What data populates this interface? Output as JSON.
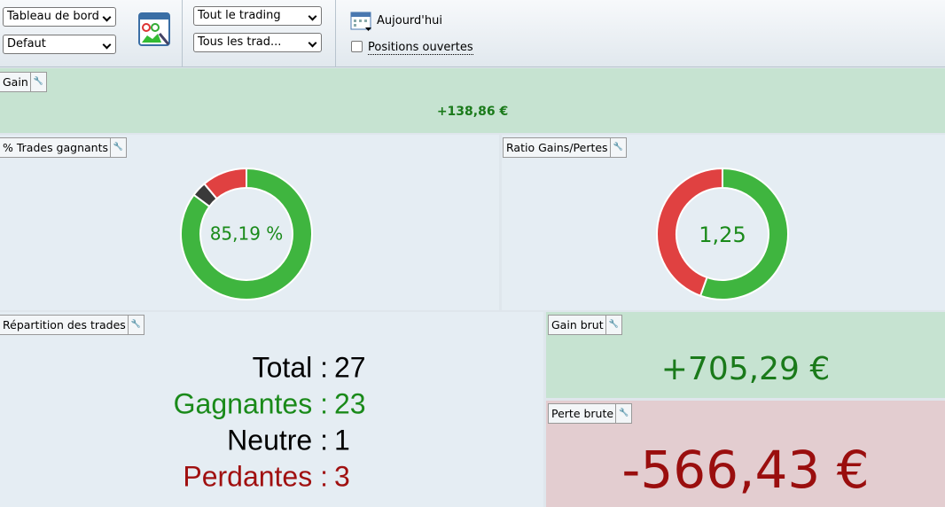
{
  "toolbar": {
    "dropdowns": [
      "Tableau de bord",
      "Defaut",
      "Tout le trading",
      "Tous les trad..."
    ],
    "date_button": "Aujourd'hui",
    "checkbox": "Positions ouvertes"
  },
  "panels": {
    "gain": {
      "title": "Gain",
      "value": "+138,86 €"
    },
    "win_rate": {
      "title": "% Trades gagnants",
      "label": "85,19 %"
    },
    "ratio": {
      "title": "Ratio Gains/Pertes",
      "label": "1,25"
    },
    "distribution": {
      "title": "Répartition des trades",
      "rows": [
        {
          "label": "Total :",
          "value": 27
        },
        {
          "label": "Gagnantes :",
          "value": 23
        },
        {
          "label": "Neutre :",
          "value": 1
        },
        {
          "label": "Perdantes :",
          "value": 3
        }
      ]
    },
    "gross_gain": {
      "title": "Gain brut",
      "label": "+705,29 €",
      "value": 705.29
    },
    "gross_loss": {
      "title": "Perte brute",
      "label": "-566,43 €",
      "value": -566.43
    }
  }
}
